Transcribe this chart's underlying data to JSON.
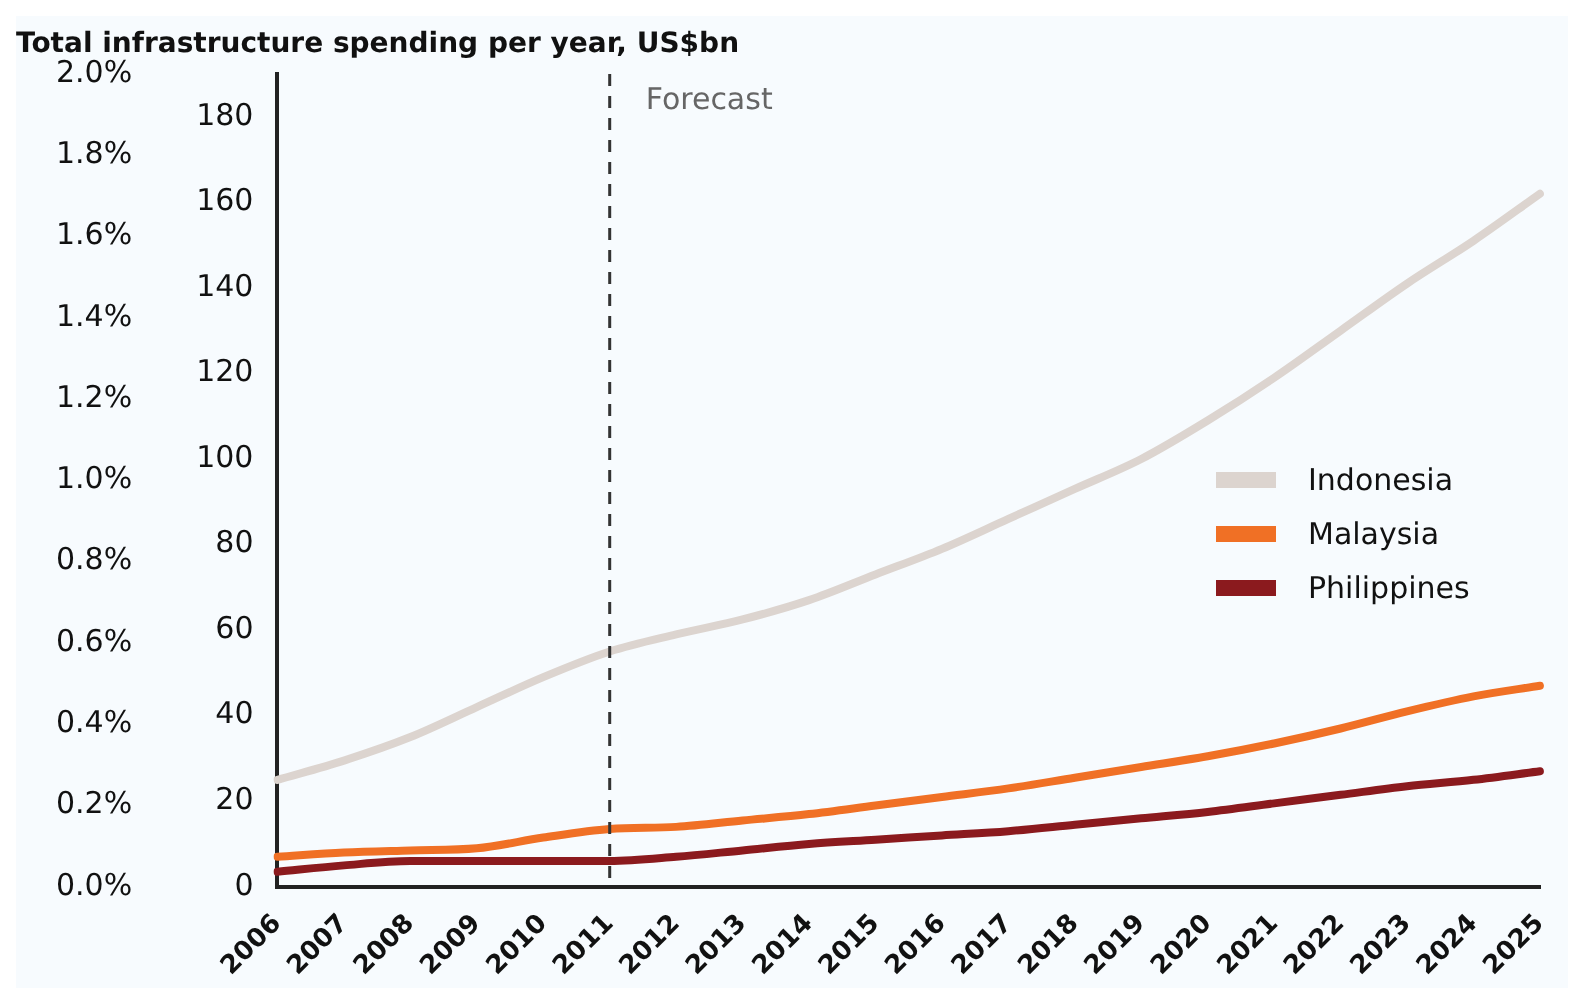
{
  "chart_data": {
    "type": "line",
    "title": "Total infrastructure spending per year, US$bn",
    "categories": [
      "2006",
      "2007",
      "2008",
      "2009",
      "2010",
      "2011",
      "2012",
      "2013",
      "2014",
      "2015",
      "2016",
      "2017",
      "2018",
      "2019",
      "2020",
      "2021",
      "2022",
      "2023",
      "2024",
      "2025"
    ],
    "series": [
      {
        "name": "Indonesia",
        "color": "#dcd4cf",
        "values": [
          25,
          29.5,
          35,
          42,
          49,
          55,
          59,
          62.5,
          67,
          73,
          79,
          86,
          93,
          100,
          109,
          119,
          130,
          141,
          151,
          162
        ]
      },
      {
        "name": "Malaysia",
        "color": "#f07025",
        "values": [
          7,
          8,
          8.5,
          9,
          11.5,
          13.5,
          14,
          15.5,
          17,
          19,
          21,
          23,
          25.5,
          28,
          30.5,
          33.5,
          37,
          41,
          44.5,
          47
        ]
      },
      {
        "name": "Philippines",
        "color": "#8b1a1e",
        "values": [
          3.5,
          5,
          6,
          6,
          6,
          6,
          7,
          8.5,
          10,
          11,
          12,
          13,
          14.5,
          16,
          17.5,
          19.5,
          21.5,
          23.5,
          25,
          27
        ]
      }
    ],
    "ylim": [
      0,
      190
    ],
    "yticks": [
      0,
      20,
      40,
      60,
      80,
      100,
      120,
      140,
      160,
      180
    ],
    "y2lim": [
      0,
      2.0
    ],
    "y2ticks": [
      {
        "value": 0,
        "label": "0.0%"
      },
      {
        "value": 0.2,
        "label": "0.2%"
      },
      {
        "value": 0.4,
        "label": "0.4%"
      },
      {
        "value": 0.6,
        "label": "0.6%"
      },
      {
        "value": 0.8,
        "label": "0.8%"
      },
      {
        "value": 1.0,
        "label": "1.0%"
      },
      {
        "value": 1.2,
        "label": "1.2%"
      },
      {
        "value": 1.4,
        "label": "1.4%"
      },
      {
        "value": 1.6,
        "label": "1.6%"
      },
      {
        "value": 1.8,
        "label": "1.8%"
      },
      {
        "value": 2.0,
        "label": "2.0%"
      }
    ],
    "ref_lines": [
      {
        "axis": "x",
        "value": "2011",
        "label": "Forecast",
        "color": "#333333",
        "line_style": "dashed"
      }
    ],
    "grid": false,
    "legend": "right",
    "marker": "none",
    "line_style": "solid"
  }
}
